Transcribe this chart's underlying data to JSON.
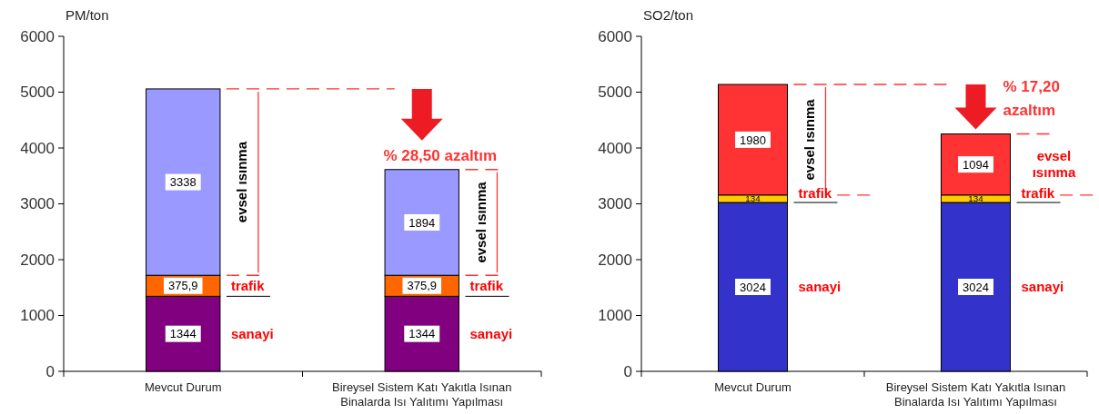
{
  "chart_data": [
    {
      "type": "bar",
      "stacked": true,
      "ylabel": "PM/ton",
      "categories": [
        "Mevcut Durum",
        "Bireysel Sistem Katı Yakıtla Isınan Binalarda Isı Yalıtımı Yapılması"
      ],
      "series": [
        {
          "name": "sanayi",
          "color": "#800080",
          "values": [
            1344,
            1344
          ],
          "value_labels": [
            "1344",
            "1344"
          ]
        },
        {
          "name": "trafik",
          "color": "#ff6600",
          "values": [
            375.9,
            375.9
          ],
          "value_labels": [
            "375,9",
            "375,9"
          ]
        },
        {
          "name": "evsel ısınma",
          "color": "#9999ff",
          "values": [
            3338,
            1894
          ],
          "value_labels": [
            "3338",
            "1894"
          ]
        }
      ],
      "ylim": [
        0,
        6000
      ],
      "yticks": [
        0,
        1000,
        2000,
        3000,
        4000,
        5000,
        6000
      ],
      "annotations": [
        "% 28,50 azaltım"
      ]
    },
    {
      "type": "bar",
      "stacked": true,
      "ylabel": "SO2/ton",
      "categories": [
        "Mevcut Durum",
        "Bireysel Sistem Katı Yakıtla Isınan Binalarda Isı Yalıtımı Yapılması"
      ],
      "series": [
        {
          "name": "sanayi",
          "color": "#3333cc",
          "values": [
            3024,
            3024
          ],
          "value_labels": [
            "3024",
            "3024"
          ]
        },
        {
          "name": "trafik",
          "color": "#ffcc00",
          "values": [
            134,
            134
          ],
          "value_labels": [
            "134",
            "134"
          ]
        },
        {
          "name": "evsel ısınma",
          "color": "#ff3333",
          "values": [
            1980,
            1094
          ],
          "value_labels": [
            "1980",
            "1094"
          ]
        }
      ],
      "ylim": [
        0,
        6000
      ],
      "yticks": [
        0,
        1000,
        2000,
        3000,
        4000,
        5000,
        6000
      ],
      "annotations": [
        "% 17,20 azaltım"
      ]
    }
  ]
}
